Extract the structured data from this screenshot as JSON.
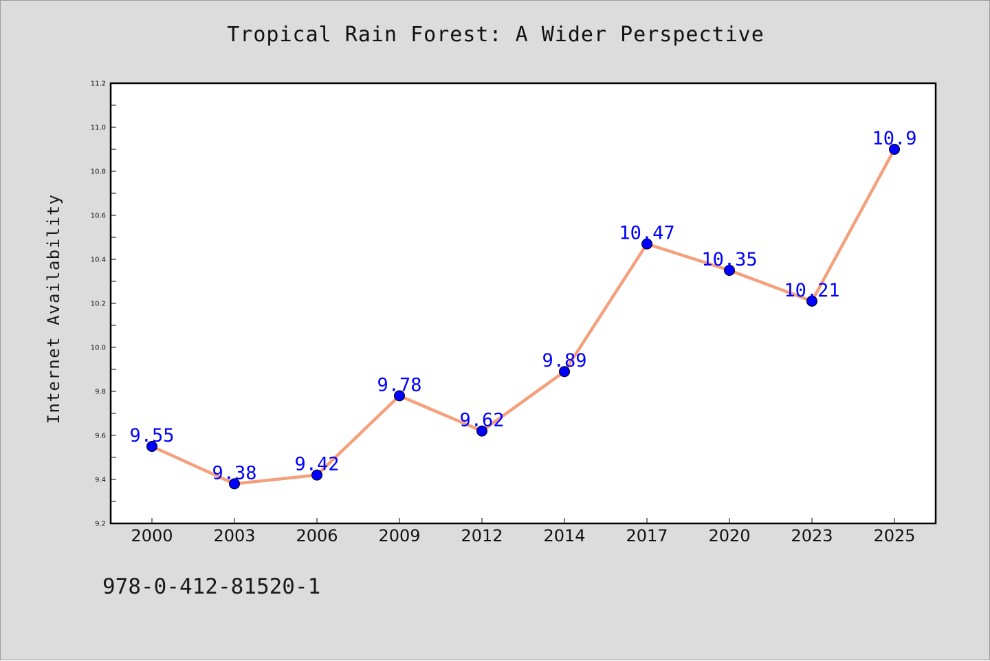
{
  "figure": {
    "footer_text": "978-0-412-81520-1"
  },
  "chart_data": {
    "type": "line",
    "title": "Tropical Rain Forest: A Wider Perspective",
    "xlabel": "",
    "ylabel": "Internet Availability",
    "categories": [
      "2000",
      "2003",
      "2006",
      "2009",
      "2012",
      "2014",
      "2017",
      "2020",
      "2023",
      "2025"
    ],
    "series": [
      {
        "values": [
          9.55,
          9.38,
          9.42,
          9.78,
          9.62,
          9.89,
          10.47,
          10.35,
          10.21,
          10.9
        ]
      }
    ],
    "data_labels": [
      "9.55",
      "9.38",
      "9.42",
      "9.78",
      "9.62",
      "9.89",
      "10.47",
      "10.35",
      "10.21",
      "10.9"
    ],
    "ylim": [
      9.2,
      11.2
    ],
    "yticks": [
      "9.2",
      "9.4",
      "9.6",
      "9.8",
      "10.0",
      "10.2",
      "10.4",
      "10.6",
      "10.8",
      "11.0",
      "11.2"
    ],
    "grid": false,
    "legend": "none",
    "colors": {
      "line": "#f4a07c",
      "marker": "#0000ff",
      "label": "#0000ff",
      "background": "#dcdcdc",
      "plot_background": "#ffffff"
    }
  }
}
